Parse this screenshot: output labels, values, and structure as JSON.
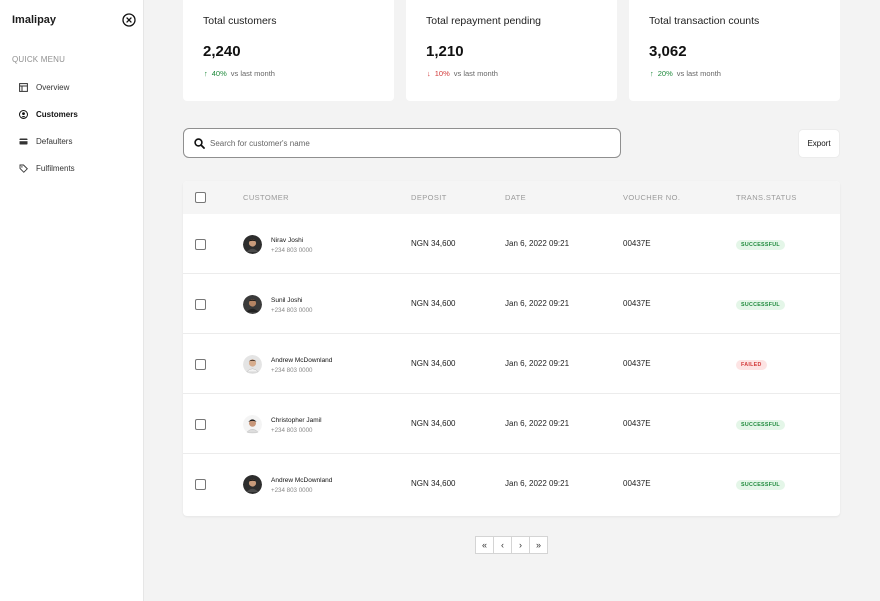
{
  "sidebar": {
    "brand": "Imalipay",
    "section_label": "QUICK MENU",
    "items": [
      {
        "label": "Overview",
        "icon": "layout-icon",
        "active": false
      },
      {
        "label": "Customers",
        "icon": "user-circle-icon",
        "active": true
      },
      {
        "label": "Defaulters",
        "icon": "card-icon",
        "active": false
      },
      {
        "label": "Fulfilments",
        "icon": "tag-icon",
        "active": false
      }
    ]
  },
  "stats": [
    {
      "title": "Total customers",
      "value": "2,240",
      "change": "40%",
      "direction": "up",
      "caption": "vs last month"
    },
    {
      "title": "Total repayment pending",
      "value": "1,210",
      "change": "10%",
      "direction": "down",
      "caption": "vs last month"
    },
    {
      "title": "Total transaction counts",
      "value": "3,062",
      "change": "20%",
      "direction": "up",
      "caption": "vs last month"
    }
  ],
  "search": {
    "placeholder": "Search for customer's name"
  },
  "export_label": "Export",
  "table": {
    "headers": [
      "CUSTOMER",
      "DEPOSIT",
      "DATE",
      "VOUCHER NO.",
      "TRANS.STATUS"
    ],
    "rows": [
      {
        "name": "Nirav Joshi",
        "phone": "+234 803 0000",
        "deposit": "NGN 34,600",
        "date": "Jan 6, 2022 09:21",
        "voucher": "00437E",
        "status": "SUCCESSFUL",
        "status_type": "ok"
      },
      {
        "name": "Sunil Joshi",
        "phone": "+234 803 0000",
        "deposit": "NGN 34,600",
        "date": "Jan 6, 2022 09:21",
        "voucher": "00437E",
        "status": "SUCCESSFUL",
        "status_type": "ok"
      },
      {
        "name": "Andrew McDownland",
        "phone": "+234 803 0000",
        "deposit": "NGN 34,600",
        "date": "Jan 6, 2022 09:21",
        "voucher": "00437E",
        "status": "FAILED",
        "status_type": "fail"
      },
      {
        "name": "Christopher Jamil",
        "phone": "+234 803 0000",
        "deposit": "NGN 34,600",
        "date": "Jan 6, 2022 09:21",
        "voucher": "00437E",
        "status": "SUCCESSFUL",
        "status_type": "ok"
      },
      {
        "name": "Andrew McDownland",
        "phone": "+234 803 0000",
        "deposit": "NGN 34,600",
        "date": "Jan 6, 2022 09:21",
        "voucher": "00437E",
        "status": "SUCCESSFUL",
        "status_type": "ok"
      }
    ]
  },
  "pagination": {
    "first": "«",
    "prev": "‹",
    "next": "›",
    "last": "»"
  },
  "colors": {
    "up": "#1f8a3c",
    "down": "#d23a3a",
    "background": "#f3f3f3"
  }
}
